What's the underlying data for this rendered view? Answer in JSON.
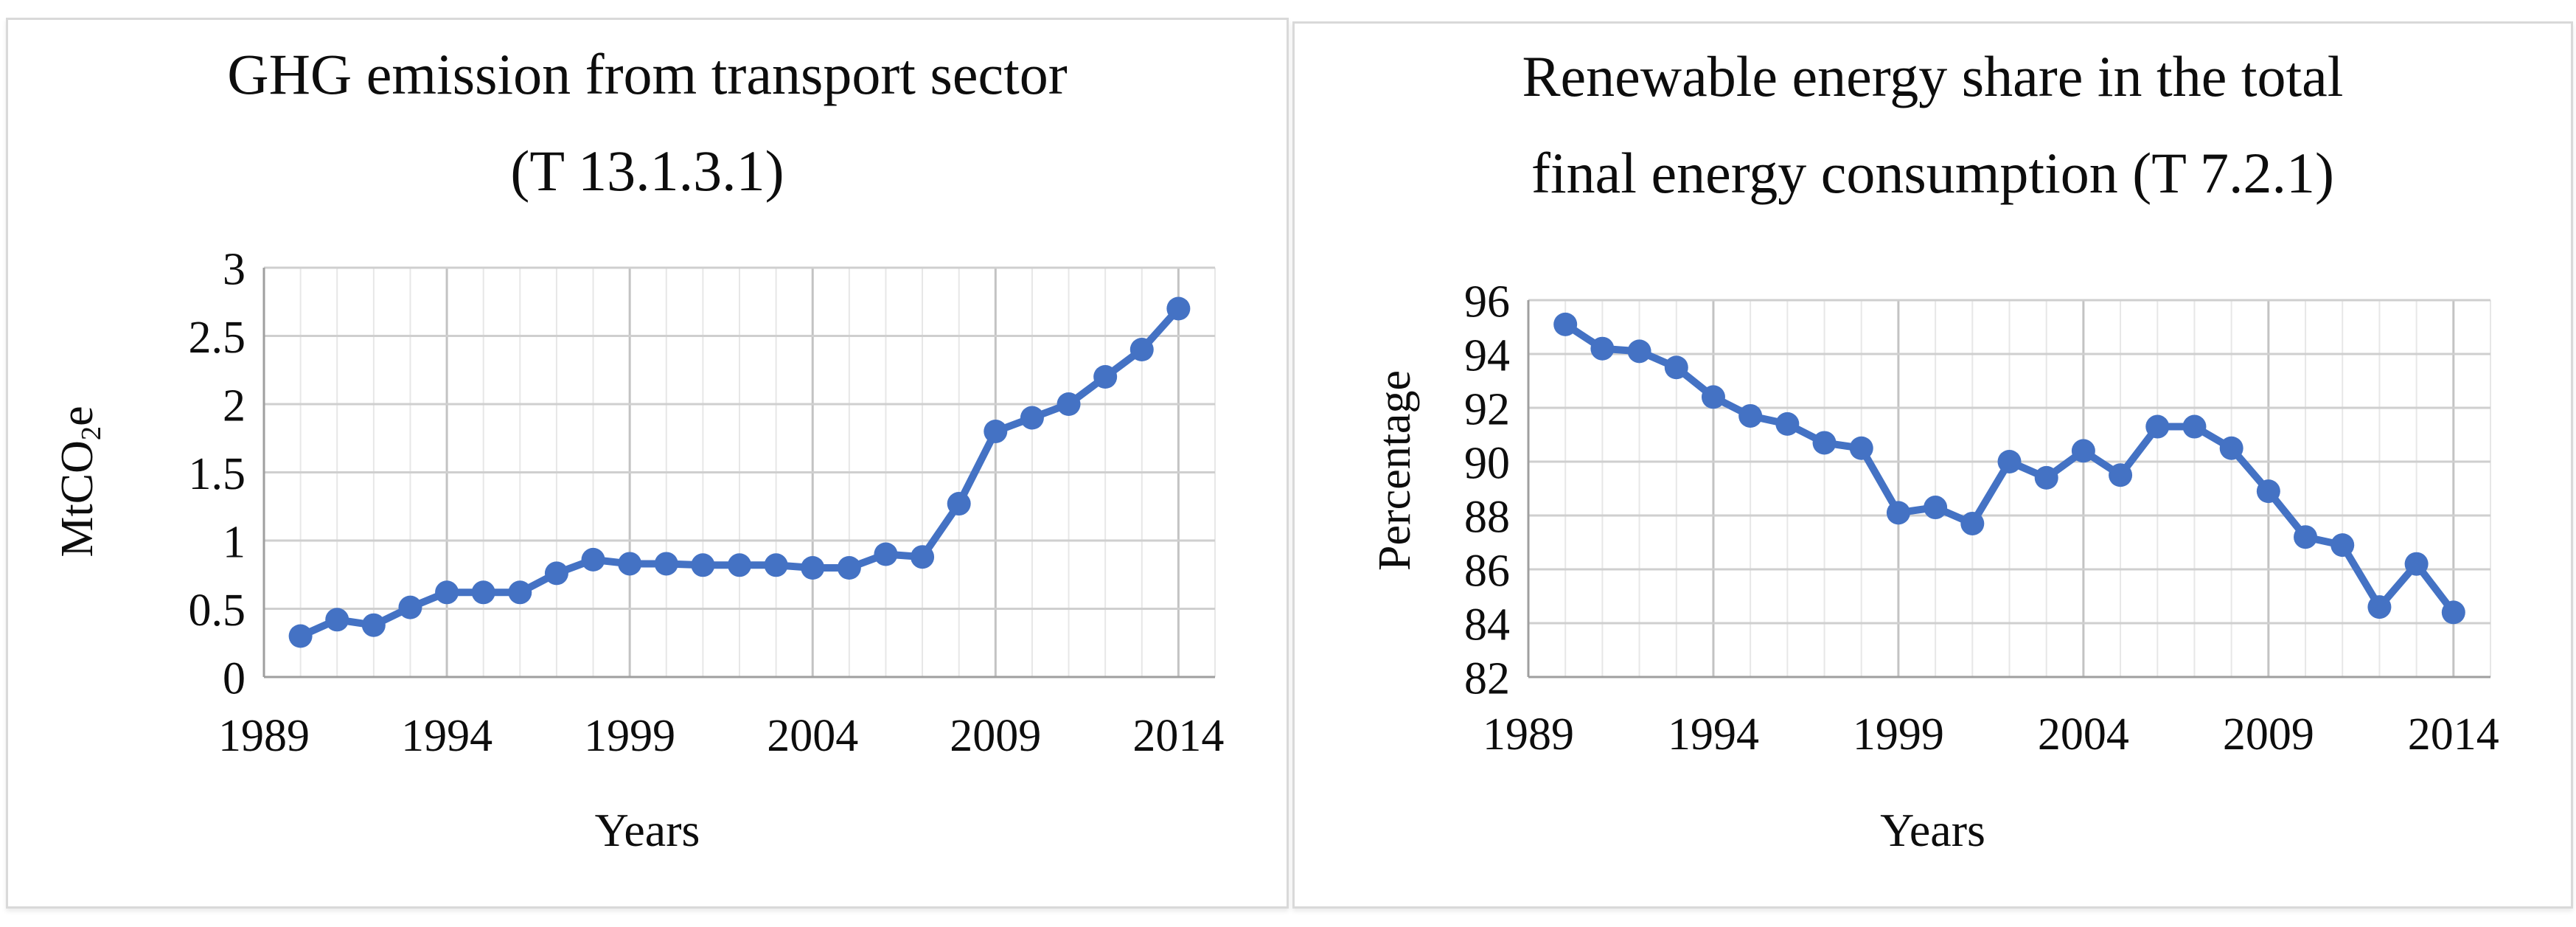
{
  "figure": {
    "description": "Two side-by-side Excel-style line charts with circular markers",
    "background": "#ffffff"
  },
  "colors": {
    "series": "#4472c4",
    "marker": "#4472c4",
    "grid_minor_vertical": "#e7e7e7",
    "grid_major_vertical": "#c3c3c3",
    "grid_horizontal": "#cfcfcf",
    "axis_line": "#9f9f9f",
    "panel_border": "#d9d9d9",
    "text": "#0d0d0d"
  },
  "chart_data": [
    {
      "type": "line",
      "title_lines": [
        "GHG emission from transport sector",
        "(T 13.1.3.1)"
      ],
      "ylabel": {
        "main": "MtCO",
        "sub": "2",
        "tail": "e"
      },
      "xlabel": "Years",
      "x": [
        1990,
        1991,
        1992,
        1993,
        1994,
        1995,
        1996,
        1997,
        1998,
        1999,
        2000,
        2001,
        2002,
        2003,
        2004,
        2005,
        2006,
        2007,
        2008,
        2009,
        2010,
        2011,
        2012,
        2013,
        2014
      ],
      "values": [
        0.3,
        0.42,
        0.38,
        0.51,
        0.62,
        0.62,
        0.62,
        0.76,
        0.86,
        0.83,
        0.83,
        0.82,
        0.82,
        0.82,
        0.8,
        0.8,
        0.9,
        0.88,
        1.27,
        1.8,
        1.9,
        2.0,
        2.2,
        2.4,
        2.7
      ],
      "xlim": [
        1989,
        2015
      ],
      "ylim": [
        0,
        3
      ],
      "ytick_step": 0.5,
      "ytick_labels": [
        "0",
        "0.5",
        "1",
        "1.5",
        "2",
        "2.5",
        "3"
      ],
      "xticks": [
        1989,
        1994,
        1999,
        2004,
        2009,
        2014
      ],
      "grid": {
        "vertical_minor": "every year",
        "vertical_major": "every 5 years",
        "horizontal": "every 0.5"
      },
      "legend": "none"
    },
    {
      "type": "line",
      "title_lines": [
        "Renewable energy share in the total",
        "final energy consumption (T 7.2.1)"
      ],
      "ylabel": {
        "main": "Percentage",
        "sub": "",
        "tail": ""
      },
      "xlabel": "Years",
      "x": [
        1990,
        1991,
        1992,
        1993,
        1994,
        1995,
        1996,
        1997,
        1998,
        1999,
        2000,
        2001,
        2002,
        2003,
        2004,
        2005,
        2006,
        2007,
        2008,
        2009,
        2010,
        2011,
        2012,
        2013,
        2014
      ],
      "values": [
        95.1,
        94.2,
        94.1,
        93.5,
        92.4,
        91.7,
        91.4,
        90.7,
        90.5,
        88.1,
        88.3,
        87.7,
        90.0,
        89.4,
        90.4,
        89.5,
        91.3,
        91.3,
        90.5,
        88.9,
        87.2,
        86.9,
        84.6,
        86.2,
        84.4
      ],
      "xlim": [
        1989,
        2015
      ],
      "ylim": [
        82,
        96
      ],
      "ytick_step": 2,
      "ytick_labels": [
        "82",
        "84",
        "86",
        "88",
        "90",
        "92",
        "94",
        "96"
      ],
      "xticks": [
        1989,
        1994,
        1999,
        2004,
        2009,
        2014
      ],
      "grid": {
        "vertical_minor": "every year",
        "vertical_major": "every 5 years",
        "horizontal": "every 2"
      },
      "legend": "none"
    }
  ]
}
